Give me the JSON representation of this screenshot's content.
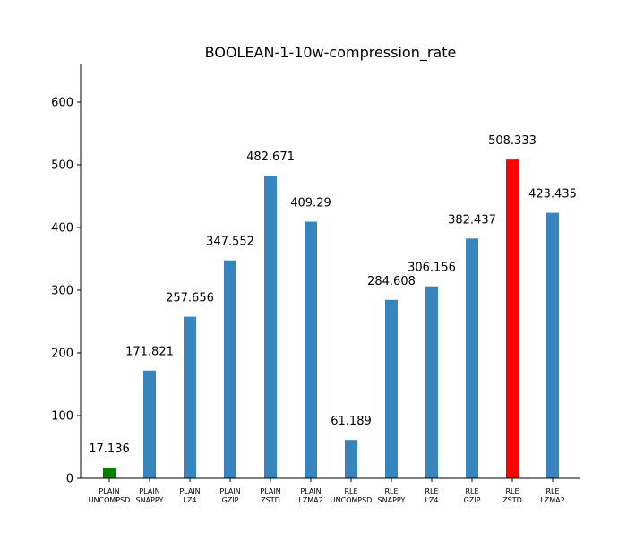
{
  "chart_data": {
    "type": "bar",
    "title": "BOOLEAN-1-10w-compression_rate",
    "xlabel": "",
    "ylabel": "",
    "ylim": [
      0,
      660
    ],
    "yticks": [
      0,
      100,
      200,
      300,
      400,
      500,
      600
    ],
    "grid": false,
    "categories": [
      [
        "PLAIN",
        "UNCOMPSD"
      ],
      [
        "PLAIN",
        "SNAPPY"
      ],
      [
        "PLAIN",
        "LZ4"
      ],
      [
        "PLAIN",
        "GZIP"
      ],
      [
        "PLAIN",
        "ZSTD"
      ],
      [
        "PLAIN",
        "LZMA2"
      ],
      [
        "RLE",
        "UNCOMPSD"
      ],
      [
        "RLE",
        "SNAPPY"
      ],
      [
        "RLE",
        "LZ4"
      ],
      [
        "RLE",
        "GZIP"
      ],
      [
        "RLE",
        "ZSTD"
      ],
      [
        "RLE",
        "LZMA2"
      ]
    ],
    "values": [
      17.136,
      171.821,
      257.656,
      347.552,
      482.671,
      409.29,
      61.189,
      284.608,
      306.156,
      382.437,
      508.333,
      423.435
    ],
    "value_labels": [
      "17.136",
      "171.821",
      "257.656",
      "347.552",
      "482.671",
      "409.29",
      "61.189",
      "284.608",
      "306.156",
      "382.437",
      "508.333",
      "423.435"
    ],
    "colors": [
      "#008000",
      "#3784bf",
      "#3784bf",
      "#3784bf",
      "#3784bf",
      "#3784bf",
      "#3784bf",
      "#3784bf",
      "#3784bf",
      "#3784bf",
      "#ff0000",
      "#3784bf"
    ]
  }
}
